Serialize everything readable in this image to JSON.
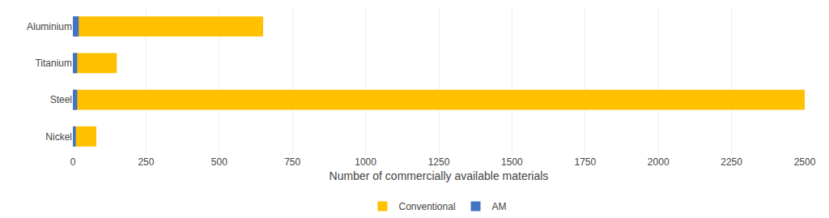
{
  "chart_data": {
    "type": "bar",
    "orientation": "horizontal",
    "categories": [
      "Aluminium",
      "Titanium",
      "Steel",
      "Nickel"
    ],
    "series": [
      {
        "name": "Conventional",
        "color": "#FFC000",
        "values": [
          650,
          150,
          2500,
          80
        ]
      },
      {
        "name": "AM",
        "color": "#4472C4",
        "values": [
          20,
          15,
          15,
          10
        ]
      }
    ],
    "xlabel": "Number of commercially available materials",
    "xlim": [
      0,
      2500
    ],
    "xticks": [
      0,
      250,
      500,
      750,
      1000,
      1250,
      1500,
      1750,
      2000,
      2250,
      2500
    ],
    "grid": true,
    "legend": "bottom"
  }
}
